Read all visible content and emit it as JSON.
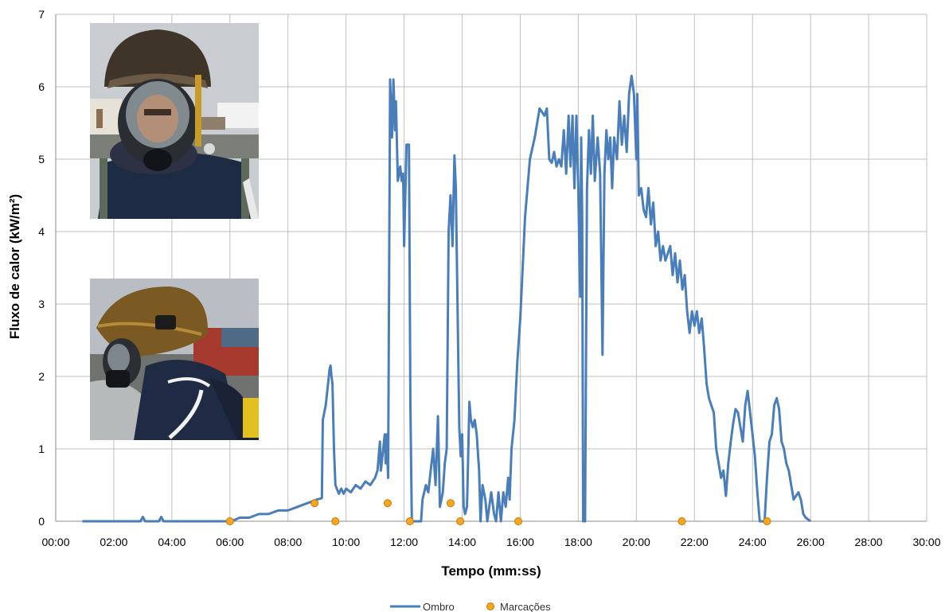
{
  "chart_data": {
    "type": "line",
    "xlabel": "Tempo (mm:ss)",
    "ylabel": "Fluxo de calor (kW/m²)",
    "xlim": [
      "00:00",
      "30:00"
    ],
    "ylim": [
      0,
      7
    ],
    "x_ticks": [
      "00:00",
      "02:00",
      "04:00",
      "06:00",
      "08:00",
      "10:00",
      "12:00",
      "14:00",
      "16:00",
      "18:00",
      "20:00",
      "22:00",
      "24:00",
      "26:00",
      "28:00",
      "30:00"
    ],
    "y_ticks": [
      "0",
      "1",
      "2",
      "3",
      "4",
      "5",
      "6",
      "7"
    ],
    "grid": true,
    "legend_position": "bottom-center",
    "series": [
      {
        "name": "Ombro",
        "kind": "line",
        "color": "#4a7ebb",
        "points": [
          [
            "00:55",
            0
          ],
          [
            "02:55",
            0
          ],
          [
            "03:00",
            0.06
          ],
          [
            "03:05",
            0
          ],
          [
            "03:33",
            0
          ],
          [
            "03:38",
            0.06
          ],
          [
            "03:43",
            0
          ],
          [
            "06:00",
            0
          ],
          [
            "06:10",
            0.02
          ],
          [
            "06:20",
            0.05
          ],
          [
            "06:40",
            0.05
          ],
          [
            "07:00",
            0.1
          ],
          [
            "07:20",
            0.1
          ],
          [
            "07:40",
            0.15
          ],
          [
            "08:00",
            0.15
          ],
          [
            "08:20",
            0.2
          ],
          [
            "08:40",
            0.25
          ],
          [
            "09:00",
            0.3
          ],
          [
            "09:10",
            0.32
          ],
          [
            "09:12",
            1.4
          ],
          [
            "09:18",
            1.6
          ],
          [
            "09:22",
            1.85
          ],
          [
            "09:26",
            2.1
          ],
          [
            "09:28",
            2.15
          ],
          [
            "09:30",
            2.0
          ],
          [
            "09:32",
            1.9
          ],
          [
            "09:35",
            1.0
          ],
          [
            "09:38",
            0.5
          ],
          [
            "09:45",
            0.38
          ],
          [
            "09:50",
            0.45
          ],
          [
            "09:55",
            0.38
          ],
          [
            "10:00",
            0.45
          ],
          [
            "10:10",
            0.4
          ],
          [
            "10:20",
            0.5
          ],
          [
            "10:30",
            0.45
          ],
          [
            "10:40",
            0.55
          ],
          [
            "10:50",
            0.5
          ],
          [
            "11:00",
            0.6
          ],
          [
            "11:05",
            0.7
          ],
          [
            "11:10",
            1.1
          ],
          [
            "11:12",
            0.7
          ],
          [
            "11:20",
            1.2
          ],
          [
            "11:22",
            0.8
          ],
          [
            "11:24",
            1.2
          ],
          [
            "11:27",
            0.6
          ],
          [
            "11:31",
            6.1
          ],
          [
            "11:35",
            5.3
          ],
          [
            "11:38",
            6.1
          ],
          [
            "11:41",
            5.4
          ],
          [
            "11:43",
            5.8
          ],
          [
            "11:47",
            4.7
          ],
          [
            "11:52",
            4.9
          ],
          [
            "11:55",
            4.7
          ],
          [
            "11:58",
            4.8
          ],
          [
            "12:00",
            3.8
          ],
          [
            "12:05",
            5.2
          ],
          [
            "12:10",
            5.2
          ],
          [
            "12:13",
            1.6
          ],
          [
            "12:16",
            0
          ],
          [
            "12:35",
            0
          ],
          [
            "12:38",
            0.3
          ],
          [
            "12:45",
            0.5
          ],
          [
            "12:50",
            0.4
          ],
          [
            "12:55",
            0.7
          ],
          [
            "13:00",
            1.0
          ],
          [
            "13:05",
            0.5
          ],
          [
            "13:10",
            1.45
          ],
          [
            "13:14",
            0.2
          ],
          [
            "13:20",
            0.4
          ],
          [
            "13:24",
            0.8
          ],
          [
            "13:28",
            1.0
          ],
          [
            "13:32",
            4.0
          ],
          [
            "13:36",
            4.5
          ],
          [
            "13:40",
            3.8
          ],
          [
            "13:44",
            5.05
          ],
          [
            "13:47",
            4.6
          ],
          [
            "13:52",
            2.2
          ],
          [
            "13:54",
            1.3
          ],
          [
            "13:57",
            0.9
          ],
          [
            "14:00",
            1.2
          ],
          [
            "14:03",
            0.2
          ],
          [
            "14:06",
            0.1
          ],
          [
            "14:10",
            0.2
          ],
          [
            "14:15",
            1.65
          ],
          [
            "14:18",
            1.4
          ],
          [
            "14:22",
            1.3
          ],
          [
            "14:26",
            1.4
          ],
          [
            "14:30",
            1.2
          ],
          [
            "14:35",
            0.7
          ],
          [
            "14:38",
            0
          ],
          [
            "14:42",
            0.5
          ],
          [
            "14:48",
            0.3
          ],
          [
            "14:52",
            0
          ],
          [
            "15:00",
            0.4
          ],
          [
            "15:06",
            0.1
          ],
          [
            "15:10",
            0
          ],
          [
            "15:15",
            0.4
          ],
          [
            "15:20",
            0
          ],
          [
            "15:25",
            0.4
          ],
          [
            "15:30",
            0.2
          ],
          [
            "15:35",
            0.6
          ],
          [
            "15:38",
            0.3
          ],
          [
            "15:42",
            1.0
          ],
          [
            "15:48",
            1.4
          ],
          [
            "15:54",
            2.2
          ],
          [
            "16:00",
            2.8
          ],
          [
            "16:10",
            4.2
          ],
          [
            "16:20",
            5.0
          ],
          [
            "16:30",
            5.3
          ],
          [
            "16:40",
            5.7
          ],
          [
            "16:50",
            5.6
          ],
          [
            "16:55",
            5.7
          ],
          [
            "17:00",
            5.0
          ],
          [
            "17:05",
            4.95
          ],
          [
            "17:10",
            5.1
          ],
          [
            "17:15",
            4.9
          ],
          [
            "17:20",
            5.0
          ],
          [
            "17:25",
            4.9
          ],
          [
            "17:30",
            5.4
          ],
          [
            "17:35",
            4.8
          ],
          [
            "17:40",
            5.6
          ],
          [
            "17:44",
            4.9
          ],
          [
            "17:48",
            5.6
          ],
          [
            "17:52",
            4.6
          ],
          [
            "17:56",
            5.6
          ],
          [
            "18:00",
            4.6
          ],
          [
            "18:04",
            3.1
          ],
          [
            "18:06",
            5.3
          ],
          [
            "18:08",
            4.2
          ],
          [
            "18:10",
            0
          ],
          [
            "18:14",
            0
          ],
          [
            "18:18",
            4.6
          ],
          [
            "18:22",
            5.4
          ],
          [
            "18:26",
            4.8
          ],
          [
            "18:30",
            5.6
          ],
          [
            "18:34",
            4.7
          ],
          [
            "18:40",
            5.3
          ],
          [
            "18:45",
            4.8
          ],
          [
            "18:50",
            2.3
          ],
          [
            "18:54",
            4.8
          ],
          [
            "18:58",
            5.4
          ],
          [
            "19:02",
            5.0
          ],
          [
            "19:06",
            5.3
          ],
          [
            "19:10",
            4.6
          ],
          [
            "19:14",
            5.3
          ],
          [
            "19:20",
            5.0
          ],
          [
            "19:25",
            5.8
          ],
          [
            "19:30",
            5.2
          ],
          [
            "19:35",
            5.6
          ],
          [
            "19:40",
            5.1
          ],
          [
            "19:45",
            5.9
          ],
          [
            "19:50",
            6.15
          ],
          [
            "19:55",
            5.9
          ],
          [
            "20:00",
            5.0
          ],
          [
            "20:02",
            5.9
          ],
          [
            "20:05",
            4.5
          ],
          [
            "20:10",
            4.6
          ],
          [
            "20:15",
            4.3
          ],
          [
            "20:20",
            4.2
          ],
          [
            "20:25",
            4.6
          ],
          [
            "20:30",
            4.1
          ],
          [
            "20:35",
            4.4
          ],
          [
            "20:40",
            3.8
          ],
          [
            "20:45",
            4.0
          ],
          [
            "20:50",
            3.6
          ],
          [
            "20:55",
            3.8
          ],
          [
            "21:00",
            3.6
          ],
          [
            "21:10",
            3.8
          ],
          [
            "21:15",
            3.4
          ],
          [
            "21:20",
            3.7
          ],
          [
            "21:25",
            3.3
          ],
          [
            "21:30",
            3.6
          ],
          [
            "21:35",
            3.2
          ],
          [
            "21:40",
            3.4
          ],
          [
            "21:45",
            2.9
          ],
          [
            "21:50",
            2.6
          ],
          [
            "21:55",
            2.9
          ],
          [
            "22:00",
            2.7
          ],
          [
            "22:05",
            2.9
          ],
          [
            "22:10",
            2.6
          ],
          [
            "22:15",
            2.8
          ],
          [
            "22:20",
            2.4
          ],
          [
            "22:25",
            1.9
          ],
          [
            "22:30",
            1.7
          ],
          [
            "22:35",
            1.6
          ],
          [
            "22:40",
            1.5
          ],
          [
            "22:45",
            1.0
          ],
          [
            "22:50",
            0.8
          ],
          [
            "22:55",
            0.6
          ],
          [
            "23:00",
            0.7
          ],
          [
            "23:05",
            0.35
          ],
          [
            "23:10",
            0.8
          ],
          [
            "23:15",
            1.1
          ],
          [
            "23:20",
            1.35
          ],
          [
            "23:25",
            1.55
          ],
          [
            "23:30",
            1.5
          ],
          [
            "23:35",
            1.3
          ],
          [
            "23:40",
            1.1
          ],
          [
            "23:45",
            1.6
          ],
          [
            "23:50",
            1.8
          ],
          [
            "23:55",
            1.5
          ],
          [
            "24:00",
            1.2
          ],
          [
            "24:05",
            0.9
          ],
          [
            "24:10",
            0.4
          ],
          [
            "24:15",
            0
          ],
          [
            "24:25",
            0
          ],
          [
            "24:30",
            0.6
          ],
          [
            "24:35",
            1.1
          ],
          [
            "24:40",
            1.2
          ],
          [
            "24:45",
            1.6
          ],
          [
            "24:50",
            1.7
          ],
          [
            "24:55",
            1.55
          ],
          [
            "25:00",
            1.1
          ],
          [
            "25:05",
            1.0
          ],
          [
            "25:10",
            0.8
          ],
          [
            "25:15",
            0.7
          ],
          [
            "25:20",
            0.5
          ],
          [
            "25:25",
            0.3
          ],
          [
            "25:30",
            0.35
          ],
          [
            "25:35",
            0.4
          ],
          [
            "25:40",
            0.3
          ],
          [
            "25:45",
            0.1
          ],
          [
            "25:50",
            0.05
          ],
          [
            "26:00",
            0
          ]
        ]
      },
      {
        "name": "Marcações",
        "kind": "scatter",
        "color": "#f5a623",
        "points": [
          [
            "06:00",
            0
          ],
          [
            "08:55",
            0.25
          ],
          [
            "09:38",
            0
          ],
          [
            "11:26",
            0.25
          ],
          [
            "12:12",
            0
          ],
          [
            "13:36",
            0.25
          ],
          [
            "13:56",
            0
          ],
          [
            "15:56",
            0
          ],
          [
            "21:34",
            0
          ],
          [
            "24:30",
            0
          ]
        ]
      }
    ]
  },
  "photos": [
    {
      "name": "firefighter-front-photo"
    },
    {
      "name": "firefighter-side-photo"
    }
  ]
}
